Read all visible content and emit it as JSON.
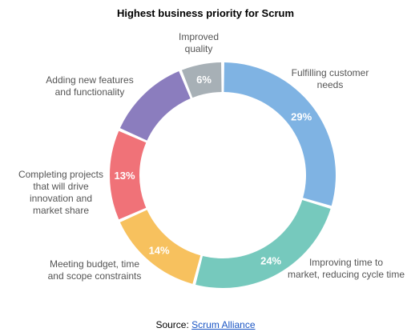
{
  "chart_data": {
    "type": "pie",
    "title": "Highest business priority for Scrum",
    "start_angle_deg": 0,
    "direction": "clockwise",
    "donut": true,
    "slices": [
      {
        "label": [
          "Fulfilling customer",
          "needs"
        ],
        "value": 29,
        "value_label": "29%",
        "color": "#7fb3e3"
      },
      {
        "label": [
          "Improving time to",
          "market, reducing cycle time"
        ],
        "value": 24,
        "value_label": "24%",
        "color": "#76c9bd"
      },
      {
        "label": [
          "Meeting budget, time",
          "and scope constraints"
        ],
        "value": 14,
        "value_label": "14%",
        "color": "#f7c15e"
      },
      {
        "label": [
          "Completing projects",
          "that will drive",
          "innovation and",
          "market share"
        ],
        "value": 13,
        "value_label": "13%",
        "color": "#f07278"
      },
      {
        "label": [
          "Adding new features",
          "and functionality"
        ],
        "value": 12,
        "value_label": "",
        "color": "#8b7dbe"
      },
      {
        "label": [
          "Improved",
          "quality"
        ],
        "value": 6,
        "value_label": "6%",
        "color": "#a7b0b6"
      }
    ]
  },
  "source": {
    "prefix": "Source:",
    "link_text": "Scrum Alliance"
  }
}
